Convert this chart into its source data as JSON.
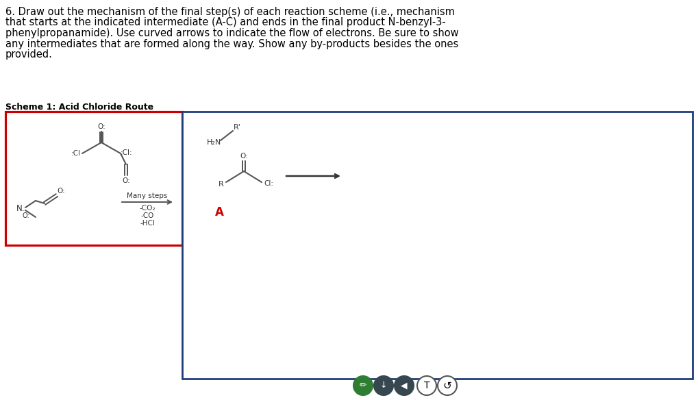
{
  "title_text_lines": [
    "6. Draw out the mechanism of the final step(s) of each reaction scheme (i.e., mechanism",
    "that starts at the indicated intermediate (A-C) and ends in the final product N-benzyl-3-",
    "phenylpropanamide). Use curved arrows to indicate the flow of electrons. Be sure to show",
    "any intermediates that are formed along the way. Show any by-products besides the ones",
    "provided."
  ],
  "scheme_label": "Scheme 1: Acid Chloride Route",
  "bg_color": "#ffffff",
  "red_box_color": "#cc0000",
  "blue_box_color": "#1f3d7a",
  "many_steps_text": "Many steps",
  "byproducts": [
    "-CO₂",
    "-CO",
    "-HCl"
  ],
  "intermediate_label": "A",
  "intermediate_label_color": "#cc0000",
  "bond_color": "#555555",
  "text_color": "#333333"
}
